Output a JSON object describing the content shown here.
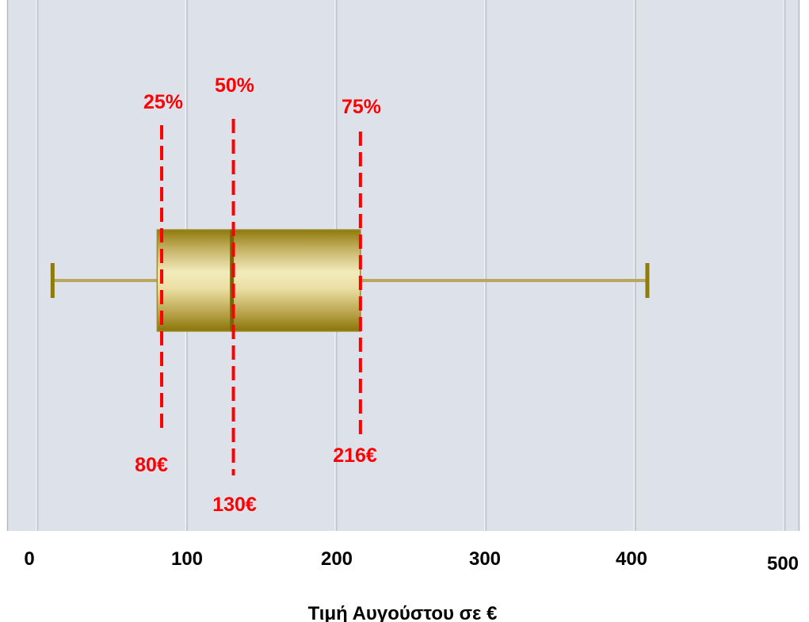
{
  "chart_data": {
    "type": "boxplot",
    "xlabel": "Τιμή Αυγούστου σε €",
    "xlim": [
      -20,
      505
    ],
    "x_ticks": [
      {
        "value": 0,
        "label": "0"
      },
      {
        "value": 100,
        "label": "100"
      },
      {
        "value": 200,
        "label": "200"
      },
      {
        "value": 300,
        "label": "300"
      },
      {
        "value": 400,
        "label": "400"
      },
      {
        "value": 500,
        "label": "500"
      }
    ],
    "grid": true,
    "box": {
      "whisker_low": 10,
      "q1": 80,
      "median": 130,
      "q3": 216,
      "whisker_high": 408
    },
    "annotations": [
      {
        "x": 83,
        "percent_label": "25%",
        "value_label": "80€"
      },
      {
        "x": 131,
        "percent_label": "50%",
        "value_label": "130€"
      },
      {
        "x": 216,
        "percent_label": "75%",
        "value_label": "216€"
      }
    ],
    "colors": {
      "background": "#dde1ea",
      "grid": "#c2c6d0",
      "box_dark": "#8f7a0c",
      "box_light": "#f3ebbd",
      "whisker": "#b9a75e",
      "annotation": "#ff0000"
    }
  }
}
